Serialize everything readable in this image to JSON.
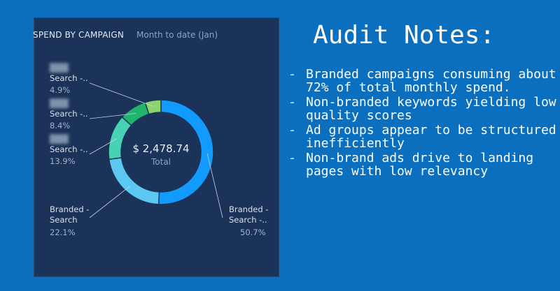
{
  "card": {
    "title": "SPEND BY CAMPAIGN",
    "subtitle": "Month to date (Jan)"
  },
  "chart_data": {
    "type": "pie",
    "variant": "donut",
    "center_value": "$ 2,478.74",
    "center_label": "Total",
    "slices": [
      {
        "label": "Branded - Search -..",
        "percent_label": "50.7%",
        "value": 50.7,
        "color": "#119bff",
        "blurred_prefix": false
      },
      {
        "label": "Branded - Search",
        "percent_label": "22.1%",
        "value": 22.1,
        "color": "#5cc8f2",
        "blurred_prefix": false
      },
      {
        "label": "Search -..",
        "percent_label": "13.9%",
        "value": 13.9,
        "color": "#45d3b4",
        "blurred_prefix": true
      },
      {
        "label": "Search -..",
        "percent_label": "8.4%",
        "value": 8.4,
        "color": "#1fb56b",
        "blurred_prefix": true
      },
      {
        "label": "Search -..",
        "percent_label": "4.9%",
        "value": 4.9,
        "color": "#8ad56d",
        "blurred_prefix": true
      }
    ]
  },
  "notes": {
    "title": "Audit Notes:",
    "items": [
      "Branded campaigns consuming about 72% of total monthly spend.",
      "Non-branded keywords yielding low quality scores",
      "Ad groups appear to be structured inefficiently",
      "Non-brand ads drive to landing pages with low relevancy"
    ]
  }
}
